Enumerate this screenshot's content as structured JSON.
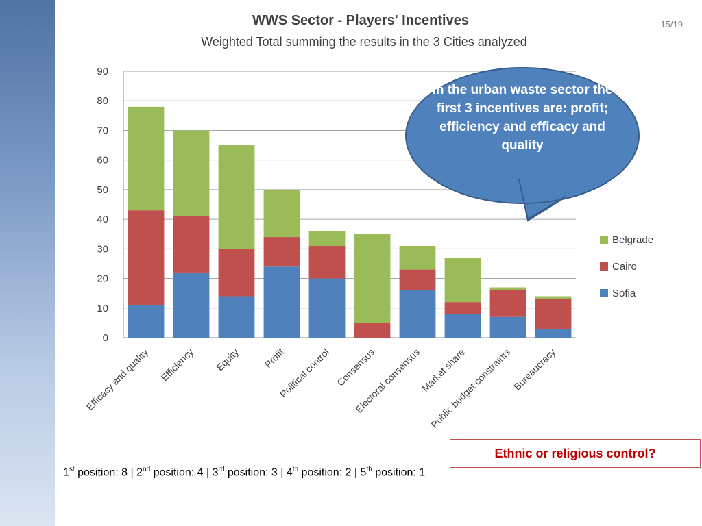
{
  "page_number": "15/19",
  "callout": {
    "text": "In the urban waste sector the first 3 incentives are: profit; efficiency and efficacy and quality"
  },
  "question_box": {
    "text": "Ethnic or religious control?"
  },
  "footer": {
    "items": [
      {
        "num": "1",
        "sup": "st",
        "text": " position: 8 | "
      },
      {
        "num": "2",
        "sup": "nd",
        "text": " position: 4 | "
      },
      {
        "num": "3",
        "sup": "rd",
        "text": " position: 3 | "
      },
      {
        "num": "4",
        "sup": "th",
        "text": " position: 2 | "
      },
      {
        "num": "5",
        "sup": "th",
        "text": " position: 1"
      }
    ]
  },
  "chart_data": {
    "type": "bar",
    "stacked": true,
    "title": "WWS Sector - Players' Incentives",
    "subtitle": "Weighted Total summing the results in the 3 Cities analyzed",
    "categories": [
      "Efficacy and quality",
      "Efficiency",
      "Equity",
      "Profit",
      "Political control",
      "Consensus",
      "Electoral consensus",
      "Market share",
      "Public budget constraints",
      "Bureaucracy"
    ],
    "series": [
      {
        "name": "Sofia",
        "color": "#4f81bd",
        "values": [
          11,
          22,
          14,
          24,
          20,
          0,
          16,
          8,
          7,
          3
        ]
      },
      {
        "name": "Cairo",
        "color": "#c0504d",
        "values": [
          32,
          19,
          16,
          10,
          11,
          5,
          7,
          4,
          9,
          10
        ]
      },
      {
        "name": "Belgrade",
        "color": "#9bbb59",
        "values": [
          35,
          29,
          35,
          16,
          5,
          30,
          8,
          15,
          1,
          1
        ]
      }
    ],
    "yticks": [
      "0",
      "10",
      "20",
      "30",
      "40",
      "50",
      "60",
      "70",
      "80",
      "90"
    ],
    "ylim": [
      0,
      90
    ],
    "xlabel": "",
    "ylabel": "",
    "grid": true,
    "legend_position": "right"
  }
}
